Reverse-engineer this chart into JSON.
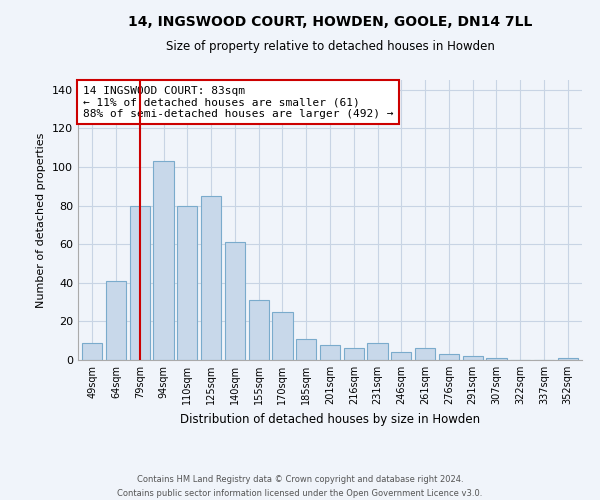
{
  "title": "14, INGSWOOD COURT, HOWDEN, GOOLE, DN14 7LL",
  "subtitle": "Size of property relative to detached houses in Howden",
  "xlabel": "Distribution of detached houses by size in Howden",
  "ylabel": "Number of detached properties",
  "categories": [
    "49sqm",
    "64sqm",
    "79sqm",
    "94sqm",
    "110sqm",
    "125sqm",
    "140sqm",
    "155sqm",
    "170sqm",
    "185sqm",
    "201sqm",
    "216sqm",
    "231sqm",
    "246sqm",
    "261sqm",
    "276sqm",
    "291sqm",
    "307sqm",
    "322sqm",
    "337sqm",
    "352sqm"
  ],
  "values": [
    9,
    41,
    80,
    103,
    80,
    85,
    61,
    31,
    25,
    11,
    8,
    6,
    9,
    4,
    6,
    3,
    2,
    1,
    0,
    0,
    1
  ],
  "bar_color": "#c8d8ea",
  "bar_edge_color": "#7aabcc",
  "vline_x": 2,
  "vline_color": "#cc0000",
  "annotation_text": "14 INGSWOOD COURT: 83sqm\n← 11% of detached houses are smaller (61)\n88% of semi-detached houses are larger (492) →",
  "annotation_box_color": "#ffffff",
  "annotation_box_edge": "#cc0000",
  "ylim": [
    0,
    145
  ],
  "yticks": [
    0,
    20,
    40,
    60,
    80,
    100,
    120,
    140
  ],
  "footer_line1": "Contains HM Land Registry data © Crown copyright and database right 2024.",
  "footer_line2": "Contains public sector information licensed under the Open Government Licence v3.0.",
  "bg_color": "#f0f4fa",
  "grid_color": "#c8d4e4"
}
